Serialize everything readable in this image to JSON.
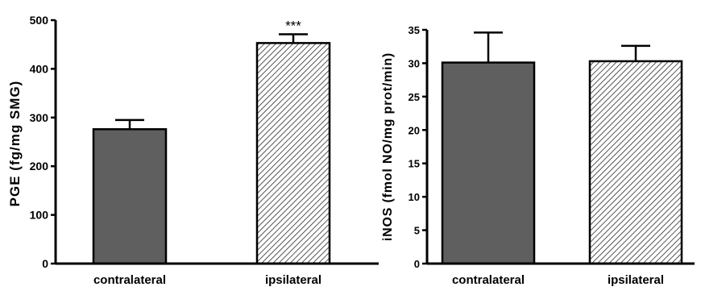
{
  "colors": {
    "solid_bar": "#5f5f5f",
    "hatched_bg": "#ffffff",
    "hatch_line": "#2b2b2b",
    "axis": "#000000"
  },
  "chart_data": [
    {
      "type": "bar",
      "title": "",
      "xlabel": "",
      "ylabel": "PGE (fg/mg SMG)",
      "categories": [
        "contralateral",
        "ipsilateral"
      ],
      "values": [
        276,
        453
      ],
      "errors": [
        19,
        18
      ],
      "fills": [
        "solid",
        "hatched"
      ],
      "annotations": [
        "",
        "***"
      ],
      "ylim": [
        0,
        500
      ],
      "yticks": [
        0,
        100,
        200,
        300,
        400,
        500
      ],
      "grid": false
    },
    {
      "type": "bar",
      "title": "",
      "xlabel": "",
      "ylabel": "iNOS (fmol NO/mg prot/min)",
      "categories": [
        "contralateral",
        "ipsilateral"
      ],
      "values": [
        30.1,
        30.3
      ],
      "errors": [
        4.5,
        2.3
      ],
      "fills": [
        "solid",
        "hatched"
      ],
      "annotations": [
        "",
        ""
      ],
      "ylim": [
        0,
        35
      ],
      "yticks": [
        0,
        5,
        10,
        15,
        20,
        25,
        30,
        35
      ],
      "grid": false
    }
  ]
}
